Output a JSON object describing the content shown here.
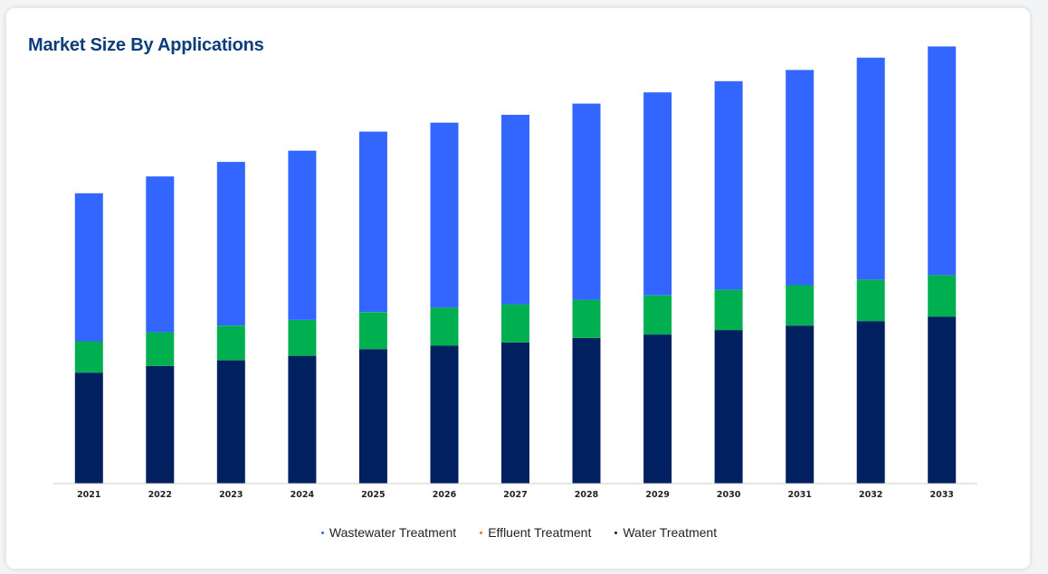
{
  "card": {
    "title": "Market Size By Applications"
  },
  "colors": {
    "wastewater": "#3366ff",
    "effluent": "#00b050",
    "water": "#002060",
    "title": "#0d3d7a"
  },
  "chart_data": {
    "type": "bar",
    "stacked": true,
    "categories": [
      "2021",
      "2022",
      "2023",
      "2024",
      "2025",
      "2026",
      "2027",
      "2028",
      "2029",
      "2030",
      "2031",
      "2032",
      "2033"
    ],
    "series": [
      {
        "name": "Water Treatment",
        "values": [
          99,
          105,
          110,
          114,
          120,
          123,
          126,
          130,
          133,
          137,
          141,
          145,
          149
        ]
      },
      {
        "name": "Effluent Treatment",
        "values": [
          28,
          30,
          31,
          32,
          33,
          34,
          34,
          34,
          35,
          36,
          36,
          37,
          37
        ]
      },
      {
        "name": "Wastewater Treatment",
        "values": [
          132,
          139,
          146,
          151,
          161,
          165,
          169,
          175,
          181,
          186,
          192,
          198,
          204
        ]
      }
    ],
    "legend": [
      "Wastewater Treatment",
      "Effluent Treatment",
      "Water Treatment"
    ],
    "legend_position": "bottom",
    "ylim": [
      0,
      400
    ],
    "grid": false,
    "title": "Market Size By Applications",
    "xlabel": "",
    "ylabel": ""
  }
}
